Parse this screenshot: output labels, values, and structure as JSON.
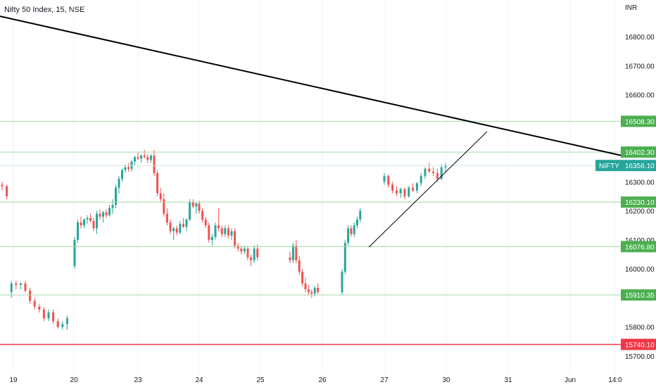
{
  "chart_data": {
    "type": "candlestick",
    "title": "Nifty 50 Index, 15, NSE",
    "currency_label": "INR",
    "symbol_tag": "NIFTY",
    "last_price": 16356.1,
    "last_price_label": "16356.10",
    "ylim": [
      15660,
      16910
    ],
    "y_ticks": [
      16800,
      16700,
      16600,
      16300,
      16200,
      16100,
      16000,
      15800,
      15700
    ],
    "y_tick_labels": [
      "16800.00",
      "16700.00",
      "16600.00",
      "16300.00",
      "16200.00",
      "16100.00",
      "16000.00",
      "15800.00",
      "15700.00"
    ],
    "x_ticks": [
      "19",
      "20",
      "23",
      "24",
      "25",
      "26",
      "27",
      "30",
      "31",
      "Jun",
      "14:0"
    ],
    "horizontal_levels": [
      {
        "value": 16508.3,
        "label": "16508.30",
        "color": "#4caf50"
      },
      {
        "value": 16402.3,
        "label": "16402.30",
        "color": "#4caf50"
      },
      {
        "value": 16230.1,
        "label": "16230.10",
        "color": "#4caf50"
      },
      {
        "value": 16076.8,
        "label": "16076.80",
        "color": "#4caf50"
      },
      {
        "value": 15910.35,
        "label": "15910.35",
        "color": "#4caf50"
      },
      {
        "value": 15740.1,
        "label": "15740.10",
        "color": "#f23645"
      }
    ],
    "colors": {
      "up": "#26a69a",
      "down": "#ef5350",
      "trend": "#000000",
      "support_line": "#a5d6a7"
    },
    "sessions": [
      {
        "label": "19",
        "ohlc": [
          [
            16290,
            16300,
            16270,
            16285
          ],
          [
            16285,
            16290,
            16240,
            16250
          ],
          [
            15920,
            15960,
            15900,
            15950
          ],
          [
            15950,
            15960,
            15930,
            15945
          ],
          [
            15945,
            15955,
            15930,
            15950
          ],
          [
            15950,
            15960,
            15920,
            15925
          ],
          [
            15925,
            15935,
            15880,
            15890
          ],
          [
            15890,
            15900,
            15860,
            15870
          ],
          [
            15870,
            15880,
            15850,
            15860
          ],
          [
            15860,
            15870,
            15820,
            15830
          ],
          [
            15830,
            15860,
            15820,
            15850
          ],
          [
            15850,
            15860,
            15810,
            15820
          ],
          [
            15820,
            15830,
            15795,
            15800
          ],
          [
            15800,
            15820,
            15790,
            15810
          ],
          [
            15810,
            15840,
            15790,
            15830
          ]
        ]
      },
      {
        "label": "20",
        "ohlc": [
          [
            16010,
            16110,
            16000,
            16100
          ],
          [
            16100,
            16170,
            16090,
            16160
          ],
          [
            16160,
            16180,
            16140,
            16150
          ],
          [
            16150,
            16175,
            16140,
            16170
          ],
          [
            16170,
            16185,
            16155,
            16175
          ],
          [
            16175,
            16190,
            16160,
            16165
          ],
          [
            16165,
            16175,
            16130,
            16140
          ],
          [
            16140,
            16200,
            16120,
            16190
          ],
          [
            16190,
            16205,
            16170,
            16180
          ],
          [
            16180,
            16200,
            16160,
            16195
          ],
          [
            16195,
            16205,
            16175,
            16185
          ],
          [
            16185,
            16220,
            16180,
            16210
          ],
          [
            16210,
            16240,
            16190,
            16220
          ],
          [
            16220,
            16290,
            16210,
            16280
          ],
          [
            16280,
            16320,
            16260,
            16310
          ],
          [
            16310,
            16345,
            16300,
            16340
          ],
          [
            16340,
            16360,
            16330,
            16350
          ],
          [
            16350,
            16365,
            16335,
            16345
          ],
          [
            16345,
            16375,
            16335,
            16370
          ],
          [
            16370,
            16390,
            16355,
            16385
          ]
        ]
      },
      {
        "label": "23",
        "ohlc": [
          [
            16385,
            16400,
            16375,
            16380
          ],
          [
            16380,
            16395,
            16365,
            16390
          ],
          [
            16390,
            16410,
            16380,
            16385
          ],
          [
            16385,
            16395,
            16365,
            16375
          ],
          [
            16375,
            16395,
            16365,
            16390
          ],
          [
            16390,
            16410,
            16320,
            16330
          ],
          [
            16330,
            16340,
            16250,
            16260
          ],
          [
            16260,
            16280,
            16230,
            16240
          ],
          [
            16240,
            16260,
            16180,
            16190
          ],
          [
            16190,
            16210,
            16150,
            16160
          ],
          [
            16160,
            16170,
            16120,
            16130
          ],
          [
            16130,
            16145,
            16100,
            16140
          ],
          [
            16140,
            16150,
            16115,
            16125
          ],
          [
            16125,
            16165,
            16120,
            16155
          ],
          [
            16155,
            16175,
            16140,
            16145
          ],
          [
            16145,
            16175,
            16130,
            16170
          ],
          [
            16170,
            16240,
            16165,
            16230
          ],
          [
            16230,
            16240,
            16210,
            16215
          ],
          [
            16215,
            16230,
            16190,
            16225
          ]
        ]
      },
      {
        "label": "24",
        "ohlc": [
          [
            16225,
            16235,
            16190,
            16200
          ],
          [
            16200,
            16210,
            16160,
            16170
          ],
          [
            16170,
            16180,
            16140,
            16150
          ],
          [
            16150,
            16160,
            16090,
            16100
          ],
          [
            16100,
            16120,
            16080,
            16110
          ],
          [
            16110,
            16160,
            16100,
            16150
          ],
          [
            16150,
            16210,
            16130,
            16140
          ],
          [
            16140,
            16150,
            16110,
            16120
          ],
          [
            16120,
            16150,
            16110,
            16140
          ],
          [
            16140,
            16150,
            16105,
            16115
          ],
          [
            16115,
            16140,
            16100,
            16130
          ],
          [
            16130,
            16140,
            16070,
            16080
          ],
          [
            16080,
            16090,
            16060,
            16070
          ],
          [
            16070,
            16080,
            16050,
            16060
          ],
          [
            16060,
            16080,
            16050,
            16070
          ],
          [
            16070,
            16075,
            16030,
            16040
          ],
          [
            16040,
            16050,
            16010,
            16030
          ],
          [
            16030,
            16080,
            16020,
            16070
          ],
          [
            16070,
            16085,
            16030,
            16040
          ]
        ]
      },
      {
        "label": "25",
        "ohlc": [
          [
            16040,
            16060,
            16020,
            16030
          ],
          [
            16030,
            16090,
            16020,
            16080
          ],
          [
            16080,
            16100,
            16020,
            16030
          ],
          [
            16030,
            16045,
            15980,
            15990
          ],
          [
            15990,
            16000,
            15940,
            15950
          ],
          [
            15950,
            15970,
            15920,
            15930
          ],
          [
            15930,
            15945,
            15910,
            15920
          ],
          [
            15920,
            15930,
            15900,
            15915
          ],
          [
            15915,
            15940,
            15905,
            15935
          ],
          [
            15935,
            15950,
            15915,
            15920
          ]
        ]
      },
      {
        "label": "26",
        "ohlc": [
          [
            15920,
            16000,
            15910,
            15990
          ],
          [
            15990,
            16100,
            15980,
            16090
          ],
          [
            16090,
            16150,
            16080,
            16140
          ],
          [
            16140,
            16150,
            16110,
            16120
          ],
          [
            16120,
            16160,
            16110,
            16150
          ],
          [
            16150,
            16180,
            16140,
            16170
          ],
          [
            16170,
            16210,
            16160,
            16200
          ]
        ]
      },
      {
        "label": "27",
        "ohlc": [
          [
            16300,
            16330,
            16290,
            16320
          ],
          [
            16320,
            16325,
            16280,
            16290
          ],
          [
            16290,
            16300,
            16260,
            16270
          ],
          [
            16270,
            16285,
            16250,
            16260
          ],
          [
            16260,
            16280,
            16245,
            16275
          ],
          [
            16275,
            16280,
            16240,
            16250
          ],
          [
            16250,
            16285,
            16245,
            16280
          ],
          [
            16280,
            16295,
            16265,
            16270
          ],
          [
            16270,
            16300,
            16260,
            16295
          ],
          [
            16295,
            16330,
            16285,
            16320
          ],
          [
            16320,
            16350,
            16310,
            16345
          ],
          [
            16345,
            16365,
            16330,
            16335
          ],
          [
            16335,
            16350,
            16320,
            16330
          ],
          [
            16330,
            16345,
            16300,
            16310
          ],
          [
            16310,
            16360,
            16305,
            16350
          ],
          [
            16350,
            16365,
            16335,
            16355
          ]
        ]
      }
    ],
    "session_x": [
      {
        "label": "19",
        "x0": 3,
        "dx": 6.6
      },
      {
        "label": "20",
        "x0": 106,
        "dx": 4.5
      },
      {
        "label": "23",
        "x0": 196,
        "dx": 4.6
      },
      {
        "label": "24",
        "x0": 283,
        "dx": 4.6
      },
      {
        "label": "25",
        "x0": 412,
        "dx": 4.4
      },
      {
        "label": "26",
        "x0": 486,
        "dx": 4.3
      },
      {
        "label": "27",
        "x0": 546,
        "dx": 5.8
      }
    ],
    "trendlines": [
      {
        "name": "resistance",
        "from": {
          "x": 0,
          "y": 16870
        },
        "to": {
          "x": 884,
          "y": 16390
        },
        "width": 2,
        "color": "#000000"
      },
      {
        "name": "support",
        "from": {
          "x": 524,
          "y": 16075
        },
        "to": {
          "x": 692,
          "y": 16473
        },
        "width": 1,
        "color": "#000000"
      }
    ]
  }
}
